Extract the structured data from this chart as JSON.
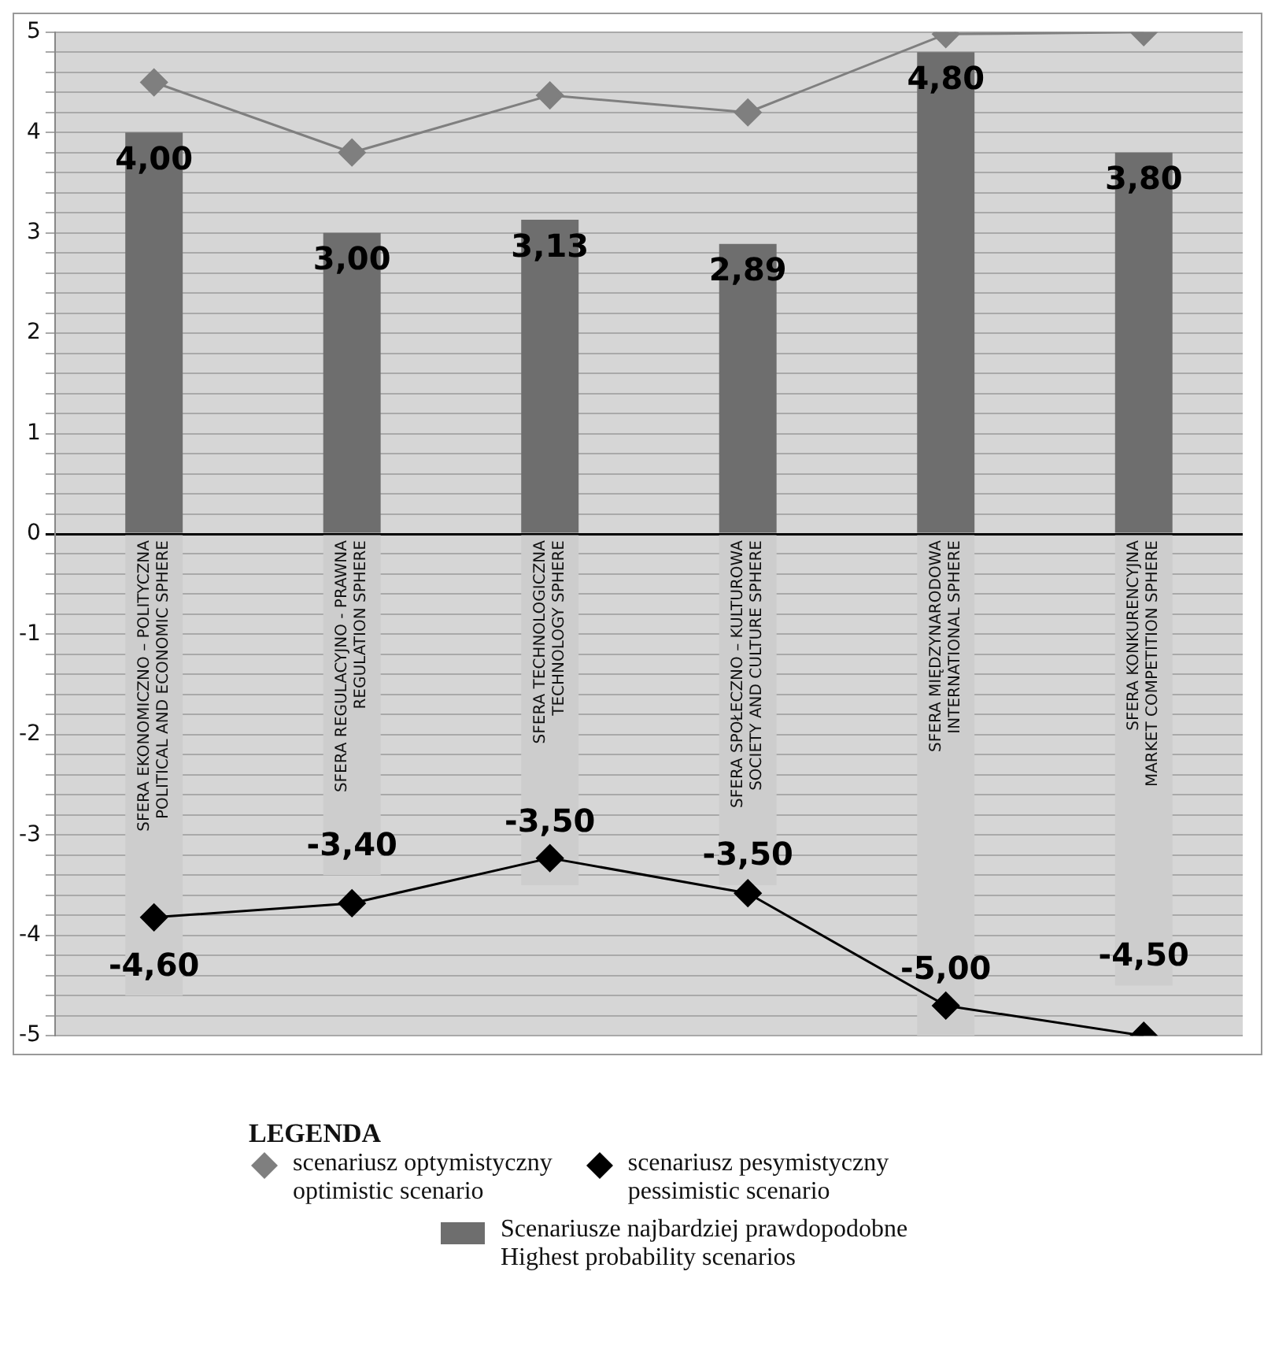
{
  "chart_data": {
    "type": "bar",
    "stacked": true,
    "legend": "bottom",
    "legend_title": "LEGENDA",
    "grid": "y",
    "marker": "diamond",
    "categories": [
      "SFERA EKONOMICZNO – POLITYCZNA\nPOLITICAL AND ECONOMIC SPHERE",
      "SFERA REGULACYJNO - PRAWNA\nREGULATION SPHERE",
      "SFERA TECHNOLOGICZNA\nTECHNOLOGY SPHERE",
      "SFERA SPOŁECZNO – KULTUROWA\nSOCIETY AND CULTURE SPHERE",
      "SFERA MIĘDZYNARODOWA\nINTERNATIONAL SPHERE",
      "SFERA KONKURENCYJNA\nMARKET COMPETITION SPHERE"
    ],
    "ylim": [
      -5,
      5
    ],
    "yticks": [
      -5,
      {
        "value": -4.8,
        "label": null
      },
      {
        "value": -4.6,
        "label": null
      },
      {
        "value": -4.4,
        "label": null
      },
      {
        "value": -4.2,
        "label": null
      },
      -4,
      {
        "value": -3.8,
        "label": null
      },
      {
        "value": -3.6,
        "label": null
      },
      {
        "value": -3.4,
        "label": null
      },
      {
        "value": -3.2,
        "label": null
      },
      -3,
      {
        "value": -2.8,
        "label": null
      },
      {
        "value": -2.6,
        "label": null
      },
      {
        "value": -2.4,
        "label": null
      },
      {
        "value": -2.2,
        "label": null
      },
      -2,
      {
        "value": -1.8,
        "label": null
      },
      {
        "value": -1.6,
        "label": null
      },
      {
        "value": -1.4,
        "label": null
      },
      {
        "value": -1.2,
        "label": null
      },
      -1,
      {
        "value": -0.8,
        "label": null
      },
      {
        "value": -0.6,
        "label": null
      },
      {
        "value": -0.4,
        "label": null
      },
      {
        "value": -0.2,
        "label": null
      },
      0,
      {
        "value": 0.2,
        "label": null
      },
      {
        "value": 0.4,
        "label": null
      },
      {
        "value": 0.6,
        "label": null
      },
      {
        "value": 0.8,
        "label": null
      },
      1,
      {
        "value": 1.2,
        "label": null
      },
      {
        "value": 1.4,
        "label": null
      },
      {
        "value": 1.6,
        "label": null
      },
      {
        "value": 1.8,
        "label": null
      },
      2,
      {
        "value": 2.2,
        "label": null
      },
      {
        "value": 2.4,
        "label": null
      },
      {
        "value": 2.6,
        "label": null
      },
      {
        "value": 2.8,
        "label": null
      },
      3,
      {
        "value": 3.2,
        "label": null
      },
      {
        "value": 3.4,
        "label": null
      },
      {
        "value": 3.6,
        "label": null
      },
      {
        "value": 3.8,
        "label": null
      },
      4,
      {
        "value": 4.2,
        "label": null
      },
      {
        "value": 4.4,
        "label": null
      },
      {
        "value": 4.6,
        "label": null
      },
      {
        "value": 4.8,
        "label": null
      },
      5
    ],
    "series": [
      {
        "name": "Scenariusze najbardziej prawdopodobne\nHighest probability scenarios",
        "color": "#6e6e6e",
        "values": [
          4.0,
          3.0,
          3.13,
          2.89,
          4.8,
          3.8
        ],
        "value_labels": [
          "4,00",
          "3,00",
          "3,13",
          "2,89",
          "4,80",
          "3,80"
        ]
      },
      {
        "color": "#cdcdcd",
        "values": [
          -4.6,
          -3.4,
          -3.5,
          -3.5,
          -5.0,
          -4.5
        ],
        "value_labels": [
          "-4,60",
          "-3,40",
          "-3,50",
          "-3,50",
          "-5,00",
          "-4,50"
        ]
      },
      {
        "type": "line",
        "name": "scenariusz optymistyczny\noptimistic scenario",
        "color": "#7f7f7f",
        "values": [
          4.5,
          3.8,
          4.37,
          4.2,
          4.98,
          5.0
        ]
      },
      {
        "type": "line",
        "name": "scenariusz pesymistyczny\npessimistic scenario",
        "color": "#000000",
        "values": [
          -3.82,
          -3.68,
          -3.23,
          -3.58,
          -4.7,
          -5.0
        ]
      }
    ]
  }
}
